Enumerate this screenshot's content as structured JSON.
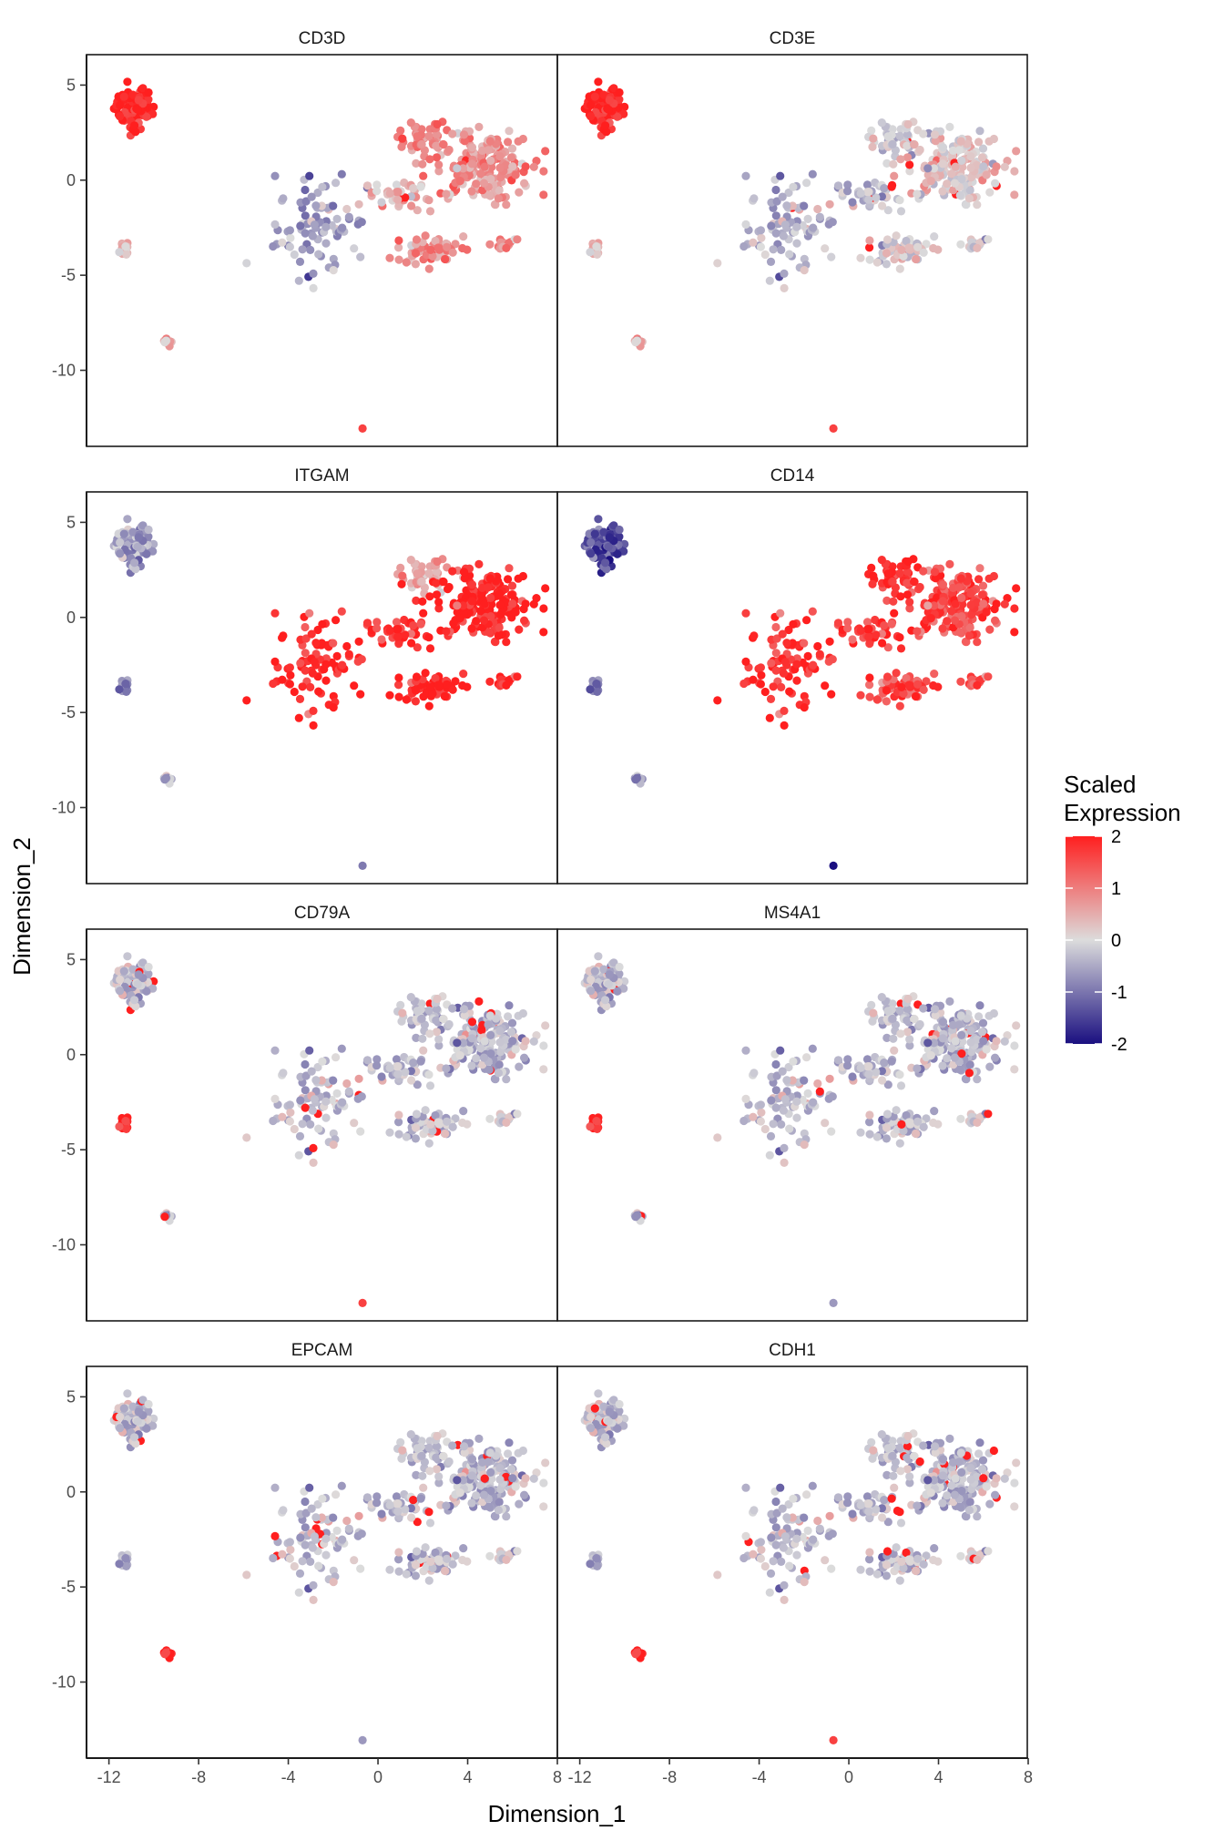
{
  "chart_data": {
    "type": "scatter",
    "subtype": "faceted embedding feature plot",
    "xlabel": "Dimension_1",
    "ylabel": "Dimension_2",
    "xlim": [
      -13.0,
      8.0
    ],
    "ylim": [
      -14.0,
      6.6
    ],
    "xticks": [
      -12,
      -8,
      -4,
      0,
      4,
      8
    ],
    "xtick_labels": [
      "-12",
      "-8",
      "-4",
      "0",
      "4",
      "8"
    ],
    "yticks": [
      -10,
      -5,
      0,
      5
    ],
    "ytick_labels": [
      "-10",
      "-5",
      "0",
      "5"
    ],
    "facet_grid": {
      "rows": 4,
      "cols": 2
    },
    "grid": false,
    "legend": {
      "title": [
        "Scaled",
        "Expression"
      ],
      "type": "colorbar",
      "placement": "right",
      "range": [
        -2,
        2
      ],
      "ticks": [
        2,
        1,
        0,
        -1,
        -2
      ],
      "tick_labels": [
        "2",
        "1",
        "0",
        "-1",
        "-2"
      ],
      "colors": {
        "low": "#1a0f80",
        "mid": "#dcdcdc",
        "high": "#ff1f1f"
      }
    },
    "clusters": [
      {
        "id": "tcell",
        "center": [
          -10.9,
          3.8
        ],
        "spread": [
          0.8,
          1.0
        ]
      },
      {
        "id": "small_left",
        "center": [
          -11.3,
          -3.6
        ],
        "spread": [
          0.2,
          0.4
        ]
      },
      {
        "id": "small_mid",
        "center": [
          -9.4,
          -8.5
        ],
        "spread": [
          0.2,
          0.2
        ]
      },
      {
        "id": "single",
        "center": [
          -0.7,
          -13.1
        ],
        "spread": [
          0.08,
          0.08
        ]
      },
      {
        "id": "stem",
        "center": [
          -2.5,
          -2.5
        ],
        "spread": [
          1.8,
          2.2
        ]
      },
      {
        "id": "upper_right_top",
        "center": [
          2.0,
          2.3
        ],
        "spread": [
          1.0,
          0.9
        ]
      },
      {
        "id": "upper_right_main",
        "center": [
          4.5,
          0.8
        ],
        "spread": [
          2.2,
          1.7
        ]
      },
      {
        "id": "lower_right",
        "center": [
          2.3,
          -3.7
        ],
        "spread": [
          1.3,
          0.6
        ]
      },
      {
        "id": "tail",
        "center": [
          5.6,
          -3.3
        ],
        "spread": [
          0.6,
          0.3
        ]
      },
      {
        "id": "bridge",
        "center": [
          1.0,
          -0.8
        ],
        "spread": [
          1.2,
          0.7
        ]
      }
    ],
    "series": [
      {
        "name": "CD3D",
        "expression_by_cluster": {
          "tcell": 2.0,
          "small_left": 0.5,
          "small_mid": 0.5,
          "single": 2.0,
          "stem": -0.6,
          "upper_right_top": 0.9,
          "upper_right_main": 0.8,
          "lower_right": 0.8,
          "tail": 0.6,
          "bridge": 0.4
        }
      },
      {
        "name": "CD3E",
        "expression_by_cluster": {
          "tcell": 2.0,
          "small_left": 0.5,
          "small_mid": 0.5,
          "single": 2.0,
          "stem": -0.4,
          "upper_right_top": -0.2,
          "upper_right_main": 0.2,
          "lower_right": 0.0,
          "tail": -0.3,
          "bridge": -0.3
        }
      },
      {
        "name": "ITGAM",
        "expression_by_cluster": {
          "tcell": -0.6,
          "small_left": -0.7,
          "small_mid": -0.3,
          "single": -0.6,
          "stem": 1.9,
          "upper_right_top": 0.5,
          "upper_right_main": 2.0,
          "lower_right": 2.0,
          "tail": 1.6,
          "bridge": 1.8
        }
      },
      {
        "name": "CD14",
        "expression_by_cluster": {
          "tcell": -1.4,
          "small_left": -0.8,
          "small_mid": -0.6,
          "single": -1.8,
          "stem": 1.8,
          "upper_right_top": 1.8,
          "upper_right_main": 1.6,
          "lower_right": 1.5,
          "tail": 1.2,
          "bridge": 1.7
        }
      },
      {
        "name": "CD79A",
        "expression_by_cluster": {
          "tcell": -0.3,
          "small_left": 2.0,
          "small_mid": -0.3,
          "single": 2.0,
          "stem": -0.3,
          "upper_right_top": -0.3,
          "upper_right_main": -0.3,
          "lower_right": -0.3,
          "tail": -0.3,
          "bridge": -0.3
        }
      },
      {
        "name": "MS4A1",
        "expression_by_cluster": {
          "tcell": -0.3,
          "small_left": 2.0,
          "small_mid": -0.3,
          "single": -0.3,
          "stem": -0.3,
          "upper_right_top": -0.3,
          "upper_right_main": -0.3,
          "lower_right": -0.3,
          "tail": -0.3,
          "bridge": -0.3
        }
      },
      {
        "name": "EPCAM",
        "expression_by_cluster": {
          "tcell": -0.3,
          "small_left": -0.3,
          "small_mid": 2.0,
          "single": -0.3,
          "stem": -0.3,
          "upper_right_top": -0.3,
          "upper_right_main": -0.3,
          "lower_right": -0.3,
          "tail": -0.3,
          "bridge": -0.3
        }
      },
      {
        "name": "CDH1",
        "expression_by_cluster": {
          "tcell": -0.3,
          "small_left": -0.3,
          "small_mid": 2.0,
          "single": 2.0,
          "stem": -0.3,
          "upper_right_top": -0.3,
          "upper_right_main": -0.3,
          "lower_right": -0.3,
          "tail": -0.3,
          "bridge": -0.3
        }
      }
    ]
  }
}
